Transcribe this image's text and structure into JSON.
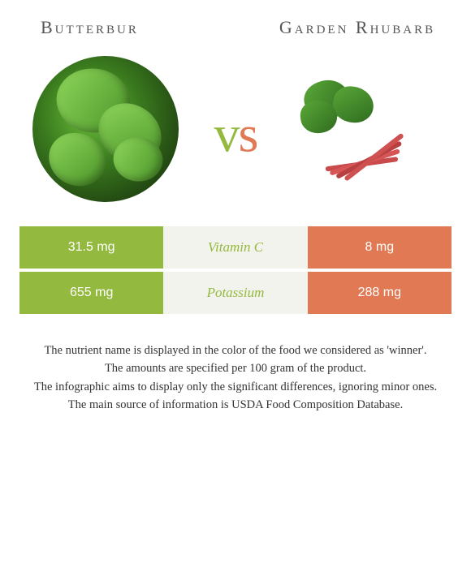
{
  "foods": {
    "left": {
      "name": "Butterbur",
      "color": "#94b93f"
    },
    "right": {
      "name": "Garden Rhubarb",
      "color": "#e17a54"
    }
  },
  "vs_label": "vs",
  "colors": {
    "left_bar": "#94b93f",
    "right_bar": "#e17a54",
    "mid_bg": "#f3f3ed",
    "row_gap_bg": "#ffffff"
  },
  "nutrients": [
    {
      "name": "Vitamin C",
      "left_value": "31.5 mg",
      "right_value": "8 mg",
      "winner": "left"
    },
    {
      "name": "Potassium",
      "left_value": "655 mg",
      "right_value": "288 mg",
      "winner": "left"
    }
  ],
  "notes": [
    "The nutrient name is displayed in the color of the food we considered as 'winner'.",
    "The amounts are specified per 100 gram of the product.",
    "The infographic aims to display only the significant differences, ignoring minor ones.",
    "The main source of information is USDA Food Composition Database."
  ]
}
